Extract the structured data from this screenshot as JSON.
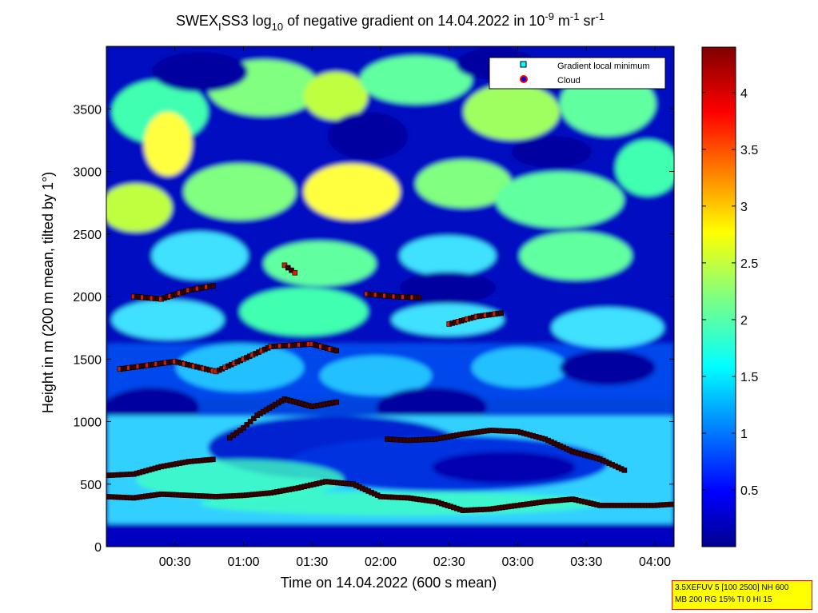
{
  "chart_data": {
    "type": "heatmap",
    "title": {
      "prefix": "SWEX",
      "subscript": "I",
      "middle": "SS3 log",
      "log_base": "10",
      "suffix": " of negative gradient on 14.04.2022 in 10",
      "exp1": "-9",
      "unit1": " m",
      "exp2": "-1",
      "unit2": " sr",
      "exp3": "-1"
    },
    "xlabel": "Time on 14.04.2022 (600 s mean)",
    "ylabel": "Height in m (200 m mean, tilted by 1°)",
    "xlim_hours": [
      0.0,
      4.14
    ],
    "ylim": [
      0,
      4000
    ],
    "x_ticks": [
      {
        "t": 0.5,
        "label": "00:30"
      },
      {
        "t": 1.0,
        "label": "01:00"
      },
      {
        "t": 1.5,
        "label": "01:30"
      },
      {
        "t": 2.0,
        "label": "02:00"
      },
      {
        "t": 2.5,
        "label": "02:30"
      },
      {
        "t": 3.0,
        "label": "03:00"
      },
      {
        "t": 3.5,
        "label": "03:30"
      },
      {
        "t": 4.0,
        "label": "04:00"
      }
    ],
    "y_ticks": [
      {
        "v": 0,
        "label": "0"
      },
      {
        "v": 500,
        "label": "500"
      },
      {
        "v": 1000,
        "label": "1000"
      },
      {
        "v": 1500,
        "label": "1500"
      },
      {
        "v": 2000,
        "label": "2000"
      },
      {
        "v": 2500,
        "label": "2500"
      },
      {
        "v": 3000,
        "label": "3000"
      },
      {
        "v": 3500,
        "label": "3500"
      }
    ],
    "colorbar": {
      "range": [
        0,
        4.4
      ],
      "ticks": [
        {
          "v": 0.5,
          "label": "0.5"
        },
        {
          "v": 1,
          "label": "1"
        },
        {
          "v": 1.5,
          "label": "1.5"
        },
        {
          "v": 2,
          "label": "2"
        },
        {
          "v": 2.5,
          "label": "2.5"
        },
        {
          "v": 3,
          "label": "3"
        },
        {
          "v": 3.5,
          "label": "3.5"
        },
        {
          "v": 4,
          "label": "4"
        }
      ],
      "colormap": "jet"
    },
    "legend": {
      "placement": "top-right",
      "entries": [
        {
          "label": "Gradient local minimum",
          "marker": "square",
          "color": "#00ffff"
        },
        {
          "label": "Cloud",
          "marker": "circle",
          "color": "#0000ff",
          "edge": "#ff0000"
        }
      ]
    },
    "gradient_minimum_layers": [
      {
        "name": "lower",
        "x": [
          0.0,
          0.2,
          0.4,
          0.6,
          0.8,
          1.0,
          1.2,
          1.4,
          1.6,
          1.8,
          2.0,
          2.2,
          2.4,
          2.6,
          2.8,
          3.0,
          3.2,
          3.4,
          3.6,
          3.8,
          4.0,
          4.14
        ],
        "y": [
          400,
          390,
          420,
          410,
          400,
          410,
          430,
          470,
          520,
          500,
          400,
          390,
          360,
          290,
          300,
          330,
          360,
          380,
          330,
          330,
          330,
          340
        ]
      },
      {
        "name": "second",
        "x": [
          0.0,
          0.2,
          0.4,
          0.6,
          0.8
        ],
        "y": [
          570,
          580,
          640,
          680,
          700
        ]
      },
      {
        "name": "third",
        "x": [
          2.05,
          2.2,
          2.4,
          2.6,
          2.8,
          3.0,
          3.2,
          3.4,
          3.6,
          3.8
        ],
        "y": [
          860,
          850,
          860,
          900,
          930,
          920,
          860,
          760,
          700,
          600
        ]
      },
      {
        "name": "mid",
        "x": [
          0.9,
          1.0,
          1.1,
          1.3,
          1.5,
          1.7
        ],
        "y": [
          870,
          950,
          1050,
          1180,
          1120,
          1160
        ]
      },
      {
        "name": "upper1",
        "x": [
          0.1,
          0.3,
          0.5,
          0.8,
          1.0,
          1.2,
          1.5,
          1.7
        ],
        "y": [
          1420,
          1450,
          1480,
          1400,
          1500,
          1600,
          1620,
          1560
        ]
      },
      {
        "name": "upper2",
        "x": [
          0.2,
          0.4,
          0.6,
          0.8
        ],
        "y": [
          2000,
          1980,
          2050,
          2090
        ]
      },
      {
        "name": "upper3",
        "x": [
          1.9,
          2.1,
          2.3
        ],
        "y": [
          2020,
          2000,
          1990
        ]
      },
      {
        "name": "upper4",
        "x": [
          2.5,
          2.7,
          2.9
        ],
        "y": [
          1780,
          1840,
          1870
        ]
      },
      {
        "name": "top",
        "x": [
          1.3,
          1.4
        ],
        "y": [
          2250,
          2170
        ]
      }
    ]
  },
  "footnote": {
    "line1": "3.5XEFUV 5 [100 2500] NH 600",
    "line2": "MB 200 RG 15% TI 0 HI 15"
  }
}
